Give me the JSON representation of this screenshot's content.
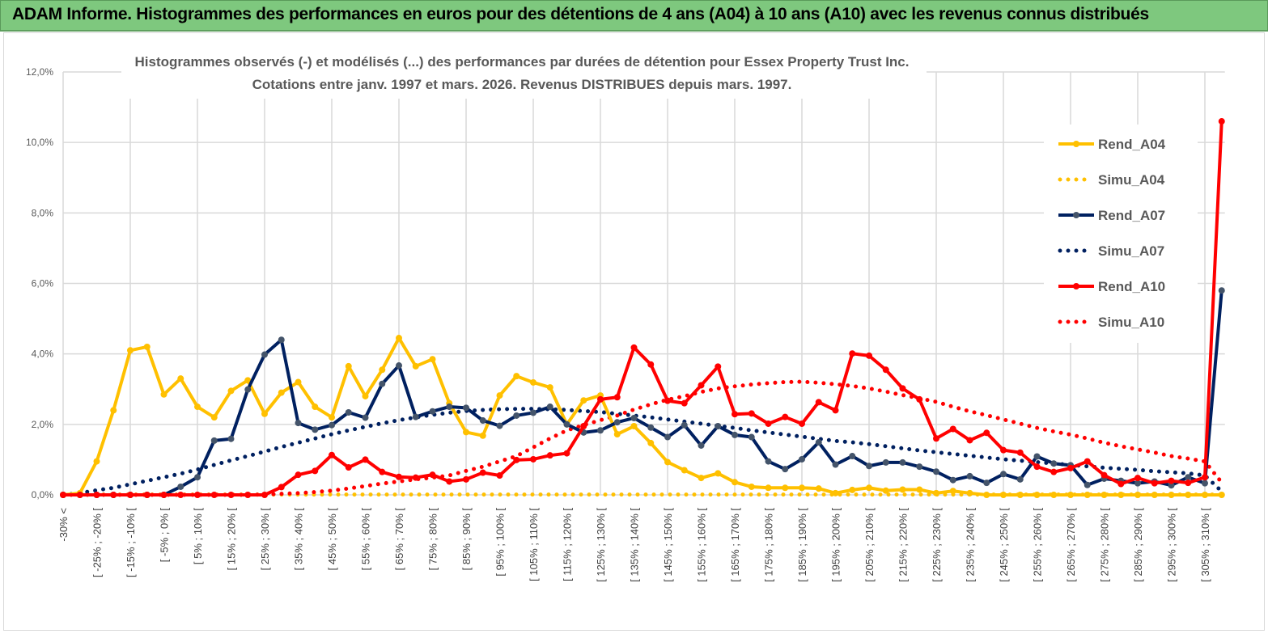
{
  "header": {
    "title": "ADAM Informe. Histogrammes des performances en euros pour des détentions de 4 ans (A04) à 10 ans (A10) avec les revenus connus distribués"
  },
  "chart_data": {
    "type": "line",
    "title_line1": "Histogrammes observés (-)  et modélisés (...) des performances par durées de détention pour Essex Property Trust Inc.",
    "title_line2": "Cotations entre janv. 1997 et mars. 2026. Revenus DISTRIBUES depuis mars. 1997.",
    "ylim": [
      0,
      12
    ],
    "yticks": [
      "0,0%",
      "2,0%",
      "4,0%",
      "6,0%",
      "8,0%",
      "10,0%",
      "12,0%"
    ],
    "ytick_values": [
      0,
      2,
      4,
      6,
      8,
      10,
      12
    ],
    "grid": true,
    "legend_placement": "right",
    "categories": [
      "-30% <",
      "",
      "[ -25% ; -20% [",
      "",
      "[ -15% ; -10% [",
      "",
      "[ -5% ; 0% [",
      "",
      "[ 5% ; 10% [",
      "",
      "[ 15% ; 20% [",
      "",
      "[ 25% ; 30% [",
      "",
      "[ 35% ; 40% [",
      "",
      "[ 45% ; 50% [",
      "",
      "[ 55% ; 60% [",
      "",
      "[ 65% ; 70% [",
      "",
      "[ 75% ; 80% [",
      "",
      "[ 85% ; 90% [",
      "",
      "[ 95% ; 100% [",
      "",
      "[ 105% ; 110% [",
      "",
      "[ 115% ; 120% [",
      "",
      "[ 125% ; 130% [",
      "",
      "[ 135% ; 140% [",
      "",
      "[ 145% ; 150% [",
      "",
      "[ 155% ; 160% [",
      "",
      "[ 165% ; 170% [",
      "",
      "[ 175% ; 180% [",
      "",
      "[ 185% ; 190% [",
      "",
      "[ 195% ; 200% [",
      "",
      "[ 205% ; 210% [",
      "",
      "[ 215% ; 220% [",
      "",
      "[ 225% ; 230% [",
      "",
      "[ 235% ; 240% [",
      "",
      "[ 245% ; 250% [",
      "",
      "[ 255% ; 260% [",
      "",
      "[ 265% ; 270% [",
      "",
      "[ 275% ; 280% [",
      "",
      "[ 285% ; 290% [",
      "",
      "[ 295% ; 300% [",
      "",
      "[ 305% ; 310% [",
      ""
    ],
    "series": [
      {
        "name": "Rend_A04",
        "color": "#ffc000",
        "style": "solid",
        "markers": true,
        "values": [
          0,
          0.05,
          0.95,
          2.4,
          4.1,
          4.2,
          2.85,
          3.3,
          2.5,
          2.2,
          2.95,
          3.25,
          2.3,
          2.9,
          3.2,
          2.5,
          2.2,
          3.65,
          2.8,
          3.55,
          4.45,
          3.65,
          3.85,
          2.6,
          1.78,
          1.68,
          2.82,
          3.37,
          3.19,
          3.05,
          2.0,
          2.68,
          2.82,
          1.72,
          1.95,
          1.47,
          0.93,
          0.7,
          0.48,
          0.61,
          0.36,
          0.23,
          0.2,
          0.2,
          0.2,
          0.18,
          0.05,
          0.14,
          0.2,
          0.12,
          0.15,
          0.15,
          0.05,
          0.11,
          0.05,
          0,
          0,
          0,
          0,
          0,
          0,
          0,
          0,
          0,
          0,
          0,
          0,
          0,
          0,
          0
        ]
      },
      {
        "name": "Simu_A04",
        "color": "#ffc000",
        "style": "dotted",
        "markers": false,
        "values": [
          0.01,
          0.01,
          0.01,
          0.01,
          0.01,
          0.01,
          0.01,
          0.01,
          0.01,
          0.01,
          0.01,
          0.01,
          0.01,
          0.01,
          0.01,
          0.01,
          0.01,
          0.01,
          0.01,
          0.01,
          0.01,
          0.01,
          0.01,
          0.01,
          0.01,
          0.01,
          0.01,
          0.01,
          0.01,
          0.01,
          0.01,
          0.01,
          0.01,
          0.01,
          0.01,
          0.01,
          0.01,
          0.01,
          0.01,
          0.01,
          0.01,
          0.01,
          0.01,
          0.01,
          0.01,
          0.01,
          0.01,
          0.01,
          0.01,
          0.01,
          0.01,
          0.01,
          0.01,
          0.01,
          0.01,
          0.01,
          0.01,
          0.01,
          0.01,
          0.01,
          0.01,
          0.01,
          0.01,
          0.01,
          0.01,
          0.01,
          0.01,
          0.01,
          0.01,
          0.01
        ]
      },
      {
        "name": "Rend_A07",
        "color": "#002060",
        "style": "solid",
        "markers": true,
        "values": [
          0,
          0,
          0,
          0,
          0,
          0,
          0,
          0.23,
          0.5,
          1.54,
          1.59,
          2.99,
          3.98,
          4.4,
          2.04,
          1.85,
          1.98,
          2.34,
          2.19,
          3.15,
          3.67,
          2.21,
          2.37,
          2.5,
          2.47,
          2.11,
          1.96,
          2.25,
          2.33,
          2.5,
          2.0,
          1.77,
          1.83,
          2.06,
          2.18,
          1.91,
          1.64,
          1.98,
          1.4,
          1.95,
          1.7,
          1.64,
          0.95,
          0.73,
          1.01,
          1.49,
          0.86,
          1.1,
          0.82,
          0.92,
          0.92,
          0.8,
          0.66,
          0.42,
          0.53,
          0.34,
          0.59,
          0.44,
          1.09,
          0.89,
          0.84,
          0.28,
          0.46,
          0.4,
          0.33,
          0.38,
          0.27,
          0.5,
          0.33,
          5.8
        ]
      },
      {
        "name": "Simu_A07",
        "color": "#002060",
        "style": "dotted",
        "markers": false,
        "values": [
          0,
          0.05,
          0.13,
          0.2,
          0.3,
          0.4,
          0.5,
          0.6,
          0.72,
          0.85,
          0.98,
          1.1,
          1.23,
          1.36,
          1.48,
          1.6,
          1.72,
          1.83,
          1.93,
          2.03,
          2.12,
          2.2,
          2.27,
          2.33,
          2.38,
          2.41,
          2.43,
          2.44,
          2.44,
          2.43,
          2.41,
          2.38,
          2.35,
          2.3,
          2.25,
          2.2,
          2.14,
          2.08,
          2.02,
          1.96,
          1.9,
          1.83,
          1.77,
          1.71,
          1.65,
          1.59,
          1.53,
          1.49,
          1.44,
          1.38,
          1.32,
          1.26,
          1.21,
          1.16,
          1.11,
          1.06,
          1.01,
          0.97,
          0.93,
          0.89,
          0.85,
          0.81,
          0.77,
          0.74,
          0.71,
          0.67,
          0.64,
          0.61,
          0.55,
          0.1
        ]
      },
      {
        "name": "Rend_A10",
        "color": "#ff0000",
        "style": "solid",
        "markers": true,
        "values": [
          0,
          0,
          0,
          0,
          0,
          0,
          0,
          0,
          0,
          0,
          0,
          0,
          0,
          0.22,
          0.57,
          0.68,
          1.13,
          0.78,
          1.0,
          0.65,
          0.51,
          0.49,
          0.57,
          0.38,
          0.44,
          0.63,
          0.55,
          0.99,
          1.01,
          1.12,
          1.18,
          1.95,
          2.71,
          2.77,
          4.18,
          3.7,
          2.67,
          2.6,
          3.11,
          3.64,
          2.29,
          2.31,
          2.02,
          2.21,
          2.02,
          2.63,
          2.4,
          4.01,
          3.95,
          3.55,
          3.02,
          2.71,
          1.6,
          1.87,
          1.55,
          1.76,
          1.27,
          1.2,
          0.8,
          0.65,
          0.76,
          0.95,
          0.56,
          0.31,
          0.48,
          0.33,
          0.4,
          0.34,
          0.5,
          10.6
        ]
      },
      {
        "name": "Simu_A10",
        "color": "#ff0000",
        "style": "dotted",
        "markers": false,
        "values": [
          0,
          0,
          0,
          0,
          0,
          0,
          0,
          0,
          0,
          0,
          0,
          0,
          0.01,
          0.03,
          0.05,
          0.08,
          0.12,
          0.18,
          0.25,
          0.32,
          0.38,
          0.44,
          0.49,
          0.55,
          0.68,
          0.8,
          0.95,
          1.1,
          1.35,
          1.6,
          1.83,
          1.98,
          2.12,
          2.25,
          2.42,
          2.57,
          2.7,
          2.8,
          2.92,
          3.02,
          3.08,
          3.13,
          3.17,
          3.2,
          3.21,
          3.18,
          3.14,
          3.09,
          3.02,
          2.93,
          2.83,
          2.74,
          2.64,
          2.5,
          2.37,
          2.26,
          2.14,
          2.02,
          1.9,
          1.8,
          1.71,
          1.6,
          1.48,
          1.38,
          1.29,
          1.2,
          1.1,
          1.03,
          0.95,
          0.35
        ]
      }
    ]
  }
}
